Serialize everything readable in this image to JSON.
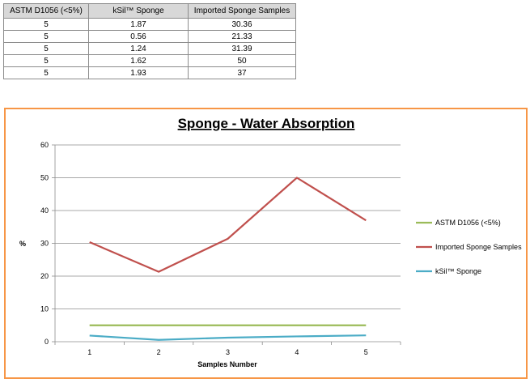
{
  "table": {
    "headers": [
      "ASTM D1056 (<5%)",
      "kSil™ Sponge",
      "Imported Sponge Samples"
    ],
    "rows": [
      [
        "5",
        "1.87",
        "30.36"
      ],
      [
        "5",
        "0.56",
        "21.33"
      ],
      [
        "5",
        "1.24",
        "31.39"
      ],
      [
        "5",
        "1.62",
        "50"
      ],
      [
        "5",
        "1.93",
        "37"
      ]
    ]
  },
  "chart_data": {
    "type": "line",
    "title": "Sponge - Water Absorption",
    "xlabel": "Samples Number",
    "ylabel": "%",
    "x": [
      1,
      2,
      3,
      4,
      5
    ],
    "ylim": [
      0,
      60
    ],
    "yticks": [
      0,
      10,
      20,
      30,
      40,
      50,
      60
    ],
    "grid": "horizontal",
    "legend_position": "right",
    "series": [
      {
        "name": "ASTM D1056 (<5%)",
        "color": "#9bbb59",
        "values": [
          5,
          5,
          5,
          5,
          5
        ]
      },
      {
        "name": "Imported Sponge Samples",
        "color": "#c0504d",
        "values": [
          30.36,
          21.33,
          31.39,
          50,
          37
        ]
      },
      {
        "name": "kSil™ Sponge",
        "color": "#4bacc6",
        "values": [
          1.87,
          0.56,
          1.24,
          1.62,
          1.93
        ]
      }
    ]
  }
}
